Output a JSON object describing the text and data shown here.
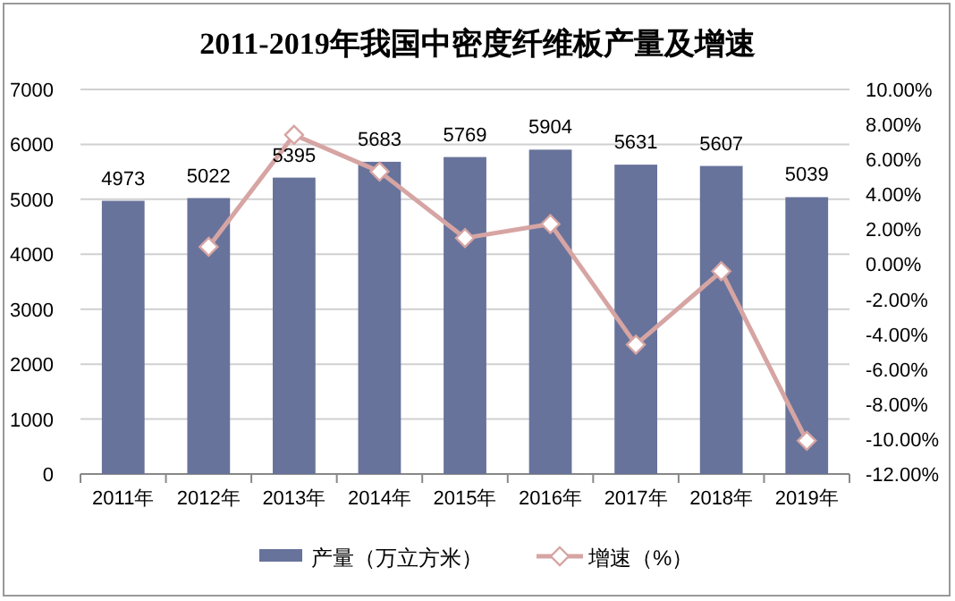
{
  "chart_data": {
    "type": "bar",
    "title": "2011-2019年我国中密度纤维板产量及增速",
    "categories": [
      "2011年",
      "2012年",
      "2013年",
      "2014年",
      "2015年",
      "2016年",
      "2017年",
      "2018年",
      "2019年"
    ],
    "series": [
      {
        "name": "产量（万立方米）",
        "color": "#68739b",
        "values": [
          4973,
          5022,
          5395,
          5683,
          5769,
          5904,
          5631,
          5607,
          5039
        ],
        "value_labels": [
          "4973",
          "5022",
          "5395",
          "5683",
          "5769",
          "5904",
          "5631",
          "5607",
          "5039"
        ]
      },
      {
        "name": "增速（%）",
        "type": "line",
        "axis": "y2",
        "color": "#d6a5a3",
        "marker": "diamond",
        "values": [
          null,
          1.0,
          7.4,
          5.3,
          1.5,
          2.3,
          -4.6,
          -0.4,
          -10.1
        ]
      }
    ],
    "ylim": [
      0,
      7000
    ],
    "yticks": [
      0,
      1000,
      2000,
      3000,
      4000,
      5000,
      6000,
      7000
    ],
    "y2lim": [
      -12,
      10
    ],
    "y2ticks": [
      {
        "value": 10,
        "label": "10.00%"
      },
      {
        "value": 8,
        "label": "8.00%"
      },
      {
        "value": 6,
        "label": "6.00%"
      },
      {
        "value": 4,
        "label": "4.00%"
      },
      {
        "value": 2,
        "label": "2.00%"
      },
      {
        "value": 0,
        "label": "0.00%"
      },
      {
        "value": -2,
        "label": "-2.00%"
      },
      {
        "value": -4,
        "label": "-4.00%"
      },
      {
        "value": -6,
        "label": "-6.00%"
      },
      {
        "value": -8,
        "label": "-8.00%"
      },
      {
        "value": -10,
        "label": "-10.00%"
      },
      {
        "value": -12,
        "label": "-12.00%"
      }
    ],
    "grid": "y",
    "legend": "bottom"
  }
}
